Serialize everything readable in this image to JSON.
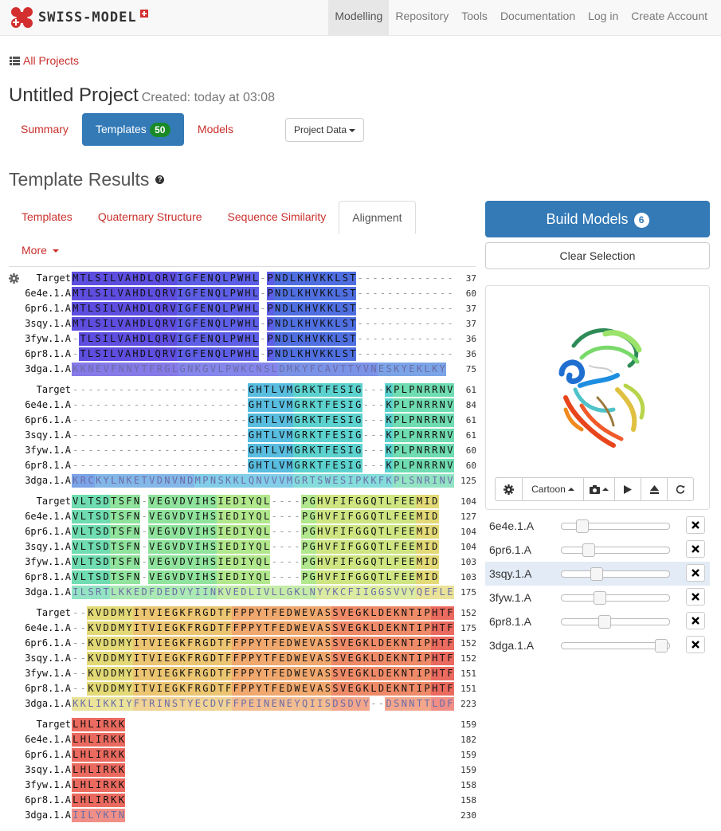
{
  "navbar": {
    "brand": "SWISS-MODEL",
    "items": [
      "Modelling",
      "Repository",
      "Tools",
      "Documentation",
      "Log in",
      "Create Account"
    ],
    "active": 0
  },
  "breadcrumb": "All Projects",
  "project": {
    "title": "Untitled Project",
    "created": "Created: today at 03:08"
  },
  "project_tabs": [
    {
      "label": "Summary"
    },
    {
      "label": "Templates",
      "badge": "50"
    },
    {
      "label": "Models"
    }
  ],
  "project_data_button": "Project Data",
  "results_title": "Template Results",
  "results_tabs": [
    "Templates",
    "Quaternary Structure",
    "Sequence Similarity",
    "Alignment"
  ],
  "more_label": "More",
  "alignment": {
    "colors": [
      "#5d4ee0",
      "#5d5ee6",
      "#4f6fe0",
      "#4f86e0",
      "#5aa0df",
      "#59bde0",
      "#5cd2cf",
      "#6fdcb1",
      "#8fe39c",
      "#b2e88d",
      "#cfe582",
      "#e3da77",
      "#ecc572",
      "#f0a86e",
      "#ee8a68",
      "#eb6a5f"
    ],
    "blocks": [
      {
        "rows": [
          {
            "name": "Target",
            "seq": "MTLSILVAHDLQRVIGFENQLPWHL-PNDLKHVKKLST-------------",
            "end": "37"
          },
          {
            "name": "6e4e.1.A",
            "seq": "MTLSILVAHDLQRVIGFENQLPWHL-PNDLKHVKKLST-------------",
            "end": "60"
          },
          {
            "name": "6pr6.1.A",
            "seq": "MTLSILVAHDLQRVIGFENQLPWHL-PNDLKHVKKLST-------------",
            "end": "37"
          },
          {
            "name": "3sqy.1.A",
            "seq": "MTLSILVAHDLQRVIGFENQLPWHL-PNDLKHVKKLST-------------",
            "end": "37"
          },
          {
            "name": "3fyw.1.A",
            "seq": "-TLSILVAHDLQRVIGFENQLPWHL-PNDLKHVKKLST-------------",
            "end": "36"
          },
          {
            "name": "6pr8.1.A",
            "seq": "-TLSILVAHDLQRVIGFENQLPWHL-PNDLKHVKKLST-------------",
            "end": "36"
          },
          {
            "name": "3dga.1.A",
            "seq": "KKNEVFNNYTFRGLGNKGVLPWKCNSLDMKYFCAVTTYVNESKYEKLKY",
            "end": "75"
          }
        ]
      },
      {
        "rows": [
          {
            "name": "Target",
            "seq": "-----------------------GHTLVMGRKTFESIG---KPLPNRRNV",
            "end": "61"
          },
          {
            "name": "6e4e.1.A",
            "seq": "-----------------------GHTLVMGRKTFESIG---KPLPNRRNV",
            "end": "84"
          },
          {
            "name": "6pr6.1.A",
            "seq": "-----------------------GHTLVMGRKTFESIG---KPLPNRRNV",
            "end": "61"
          },
          {
            "name": "3sqy.1.A",
            "seq": "-----------------------GHTLVMGRKTFESIG---KPLPNRRNV",
            "end": "61"
          },
          {
            "name": "3fyw.1.A",
            "seq": "-----------------------GHTLVMGRKTFESIG---KPLPNRRNV",
            "end": "60"
          },
          {
            "name": "6pr8.1.A",
            "seq": "-----------------------GHTLVMGRKTFESIG---KPLPNRRNV",
            "end": "60"
          },
          {
            "name": "3dga.1.A",
            "seq": "KRCKYLNKETVDNVNDMPNSKKLQNVVVMGRTSWESIPKKFKPLSNRINV",
            "end": "125"
          }
        ]
      },
      {
        "rows": [
          {
            "name": "Target",
            "seq": "VLTSDTSFN-VEGVDVIHSIEDIYQL----PGHVFIFGGQTLFEEMID",
            "end": "104"
          },
          {
            "name": "6e4e.1.A",
            "seq": "VLTSDTSFN-VEGVDVIHSIEDIYQL----PGHVFIFGGQTLFEEMID",
            "end": "127"
          },
          {
            "name": "6pr6.1.A",
            "seq": "VLTSDTSFN-VEGVDVIHSIEDIYQL----PGHVFIFGGQTLFEEMID",
            "end": "104"
          },
          {
            "name": "3sqy.1.A",
            "seq": "VLTSDTSFN-VEGVDVIHSIEDIYQL----PGHVFIFGGQTLFEEMID",
            "end": "104"
          },
          {
            "name": "3fyw.1.A",
            "seq": "VLTSDTSFN-VEGVDVIHSIEDIYQL----PGHVFIFGGQTLFEEMID",
            "end": "103"
          },
          {
            "name": "6pr8.1.A",
            "seq": "VLTSDTSFN-VEGVDVIHSIEDIYQL----PGHVFIFGGQTLFEEMID",
            "end": "103"
          },
          {
            "name": "3dga.1.A",
            "seq": "ILSRTLKKEDFDEDVYIINKVEDLIVLLGKLNYYKCFIIGGSVVYQEFLE",
            "end": "175"
          }
        ]
      },
      {
        "rows": [
          {
            "name": "Target",
            "seq": "--KVDDMYITVIEGKFRGDTFFPPYTFEDWEVASSVEGKLDEKNTIPHTF",
            "end": "152"
          },
          {
            "name": "6e4e.1.A",
            "seq": "--KVDDMYITVIEGKFRGDTFFPPYTFEDWEVASSVEGKLDEKNTIPHTF",
            "end": "175"
          },
          {
            "name": "6pr6.1.A",
            "seq": "--KVDDMYITVIEGKFRGDTFFPPYTFEDWEVASSVEGKLDEKNTIPHTF",
            "end": "152"
          },
          {
            "name": "3sqy.1.A",
            "seq": "--KVDDMYITVIEGKFRGDTFFPPYTFEDWEVASSVEGKLDEKNTIPHTF",
            "end": "152"
          },
          {
            "name": "3fyw.1.A",
            "seq": "--KVDDMYITVIEGKFRGDTFFPPYTFEDWEVASSVEGKLDEKNTIPHTF",
            "end": "151"
          },
          {
            "name": "6pr8.1.A",
            "seq": "--KVDDMYITVIEGKFRGDTFFPPYTFEDWEVASSVEGKLDEKNTIPHTF",
            "end": "151"
          },
          {
            "name": "3dga.1.A",
            "seq": "KKLIKKIYFTRINSTYECDVFFPEINENEYQIISDSDVY--DSNNTTLDF",
            "end": "223"
          }
        ]
      },
      {
        "rows": [
          {
            "name": "Target",
            "seq": "LHLIRKK",
            "end": "159"
          },
          {
            "name": "6e4e.1.A",
            "seq": "LHLIRKK",
            "end": "182"
          },
          {
            "name": "6pr6.1.A",
            "seq": "LHLIRKK",
            "end": "159"
          },
          {
            "name": "3sqy.1.A",
            "seq": "LHLIRKK",
            "end": "159"
          },
          {
            "name": "3fyw.1.A",
            "seq": "LHLIRKK",
            "end": "158"
          },
          {
            "name": "6pr8.1.A",
            "seq": "LHLIRKK",
            "end": "158"
          },
          {
            "name": "3dga.1.A",
            "seq": "IILYKTN",
            "end": "230"
          }
        ]
      }
    ]
  },
  "build_button": {
    "label": "Build Models",
    "count": "6"
  },
  "clear_button": "Clear Selection",
  "viewer_toolbar": {
    "representation": "Cartoon"
  },
  "templates": [
    {
      "name": "6e4e.1.A",
      "level": 0.15,
      "selected": false
    },
    {
      "name": "6pr6.1.A",
      "level": 0.22,
      "selected": false
    },
    {
      "name": "3sqy.1.A",
      "level": 0.3,
      "selected": true
    },
    {
      "name": "3fyw.1.A",
      "level": 0.34,
      "selected": false
    },
    {
      "name": "6pr8.1.A",
      "level": 0.39,
      "selected": false
    },
    {
      "name": "3dga.1.A",
      "level": 0.98,
      "selected": false
    }
  ],
  "colors": {
    "accent": "#c9302c",
    "primary": "#337ab7",
    "badge": "#1a8a28"
  }
}
